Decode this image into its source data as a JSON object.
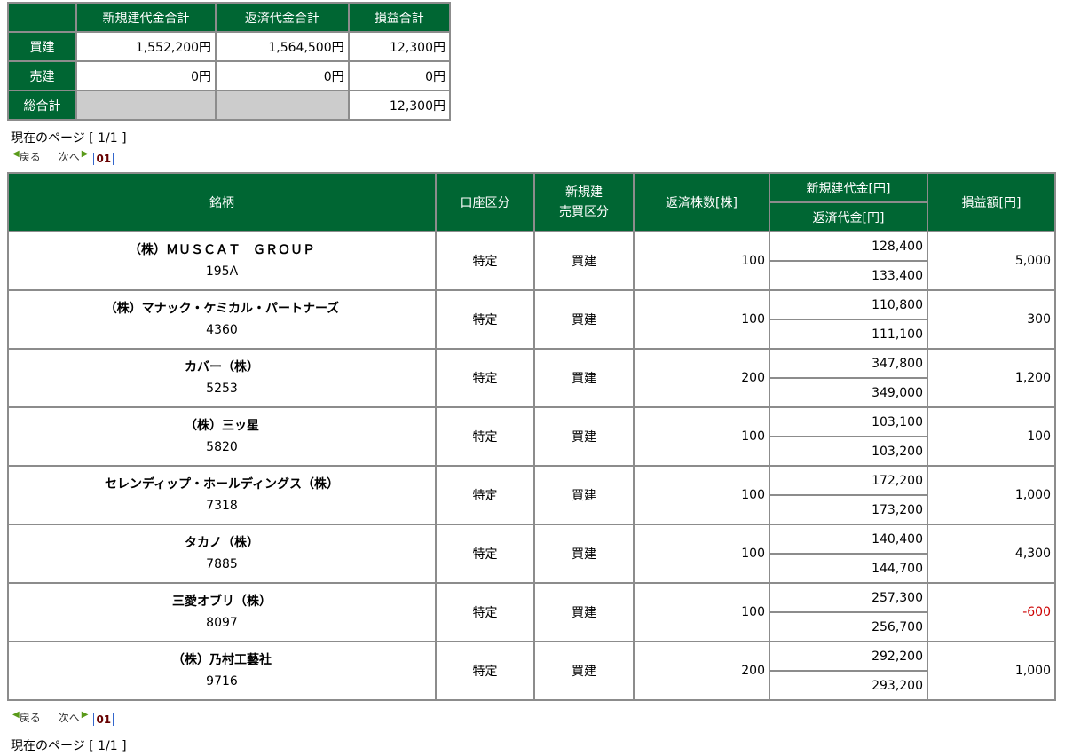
{
  "summary": {
    "headers": [
      "新規建代金合計",
      "返済代金合計",
      "損益合計"
    ],
    "rows": [
      {
        "label": "買建",
        "values": [
          "1,552,200円",
          "1,564,500円",
          "12,300円"
        ]
      },
      {
        "label": "売建",
        "values": [
          "0円",
          "0円",
          "0円"
        ]
      },
      {
        "label": "総合計",
        "values": [
          "",
          "",
          "12,300円"
        ]
      }
    ]
  },
  "pager": {
    "current": "現在のページ [ 1/1 ]",
    "prev": "戻る",
    "next": "次へ",
    "page": "01",
    "prev_icon": "triangle-left",
    "next_icon": "triangle-right",
    "icon_color": "#5a9a1a"
  },
  "table": {
    "headers": {
      "name": "銘柄",
      "account": "口座区分",
      "side_1": "新規建",
      "side_2": "売買区分",
      "qty": "返済株数[株]",
      "open": "新規建代金[円]",
      "close": "返済代金[円]",
      "pl": "損益額[円]"
    },
    "rows": [
      {
        "name": "（株）ＭＵＳＣＡＴ　ＧＲＯＵＰ",
        "code": "195A",
        "account": "特定",
        "side": "買建",
        "qty": "100",
        "open": "128,400",
        "close": "133,400",
        "pl": "5,000"
      },
      {
        "name": "（株）マナック・ケミカル・パートナーズ",
        "code": "4360",
        "account": "特定",
        "side": "買建",
        "qty": "100",
        "open": "110,800",
        "close": "111,100",
        "pl": "300"
      },
      {
        "name": "カバー（株）",
        "code": "5253",
        "account": "特定",
        "side": "買建",
        "qty": "200",
        "open": "347,800",
        "close": "349,000",
        "pl": "1,200"
      },
      {
        "name": "（株）三ッ星",
        "code": "5820",
        "account": "特定",
        "side": "買建",
        "qty": "100",
        "open": "103,100",
        "close": "103,200",
        "pl": "100"
      },
      {
        "name": "セレンディップ・ホールディングス（株）",
        "code": "7318",
        "account": "特定",
        "side": "買建",
        "qty": "100",
        "open": "172,200",
        "close": "173,200",
        "pl": "1,000"
      },
      {
        "name": "タカノ（株）",
        "code": "7885",
        "account": "特定",
        "side": "買建",
        "qty": "100",
        "open": "140,400",
        "close": "144,700",
        "pl": "4,300"
      },
      {
        "name": "三愛オブリ（株）",
        "code": "8097",
        "account": "特定",
        "side": "買建",
        "qty": "100",
        "open": "257,300",
        "close": "256,700",
        "pl": "-600"
      },
      {
        "name": "（株）乃村工藝社",
        "code": "9716",
        "account": "特定",
        "side": "買建",
        "qty": "200",
        "open": "292,200",
        "close": "293,200",
        "pl": "1,000"
      }
    ]
  },
  "colors": {
    "header": "#006633",
    "negative": "#cc0000",
    "blank": "#cccccc"
  }
}
